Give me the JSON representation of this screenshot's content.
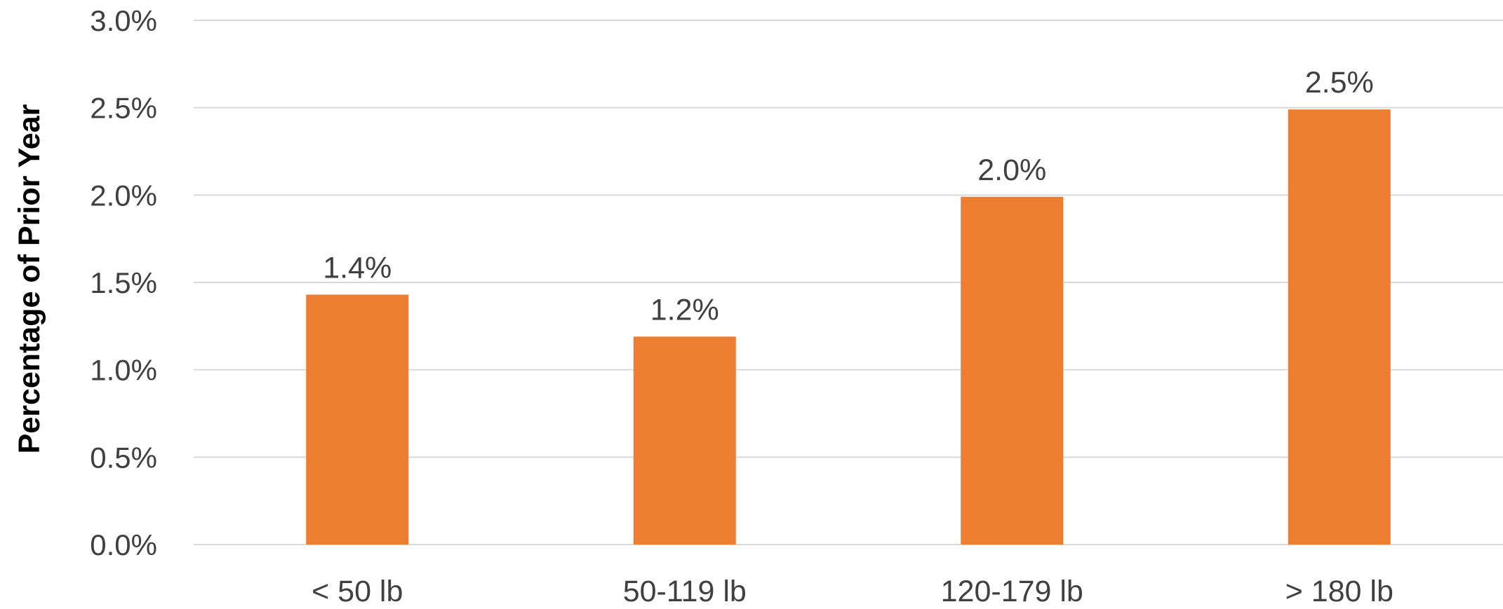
{
  "chart_data": {
    "type": "bar",
    "title": "",
    "xlabel": "",
    "ylabel": "Percentage of Prior Year",
    "categories": [
      "< 50 lb",
      "50-119 lb",
      "120-179 lb",
      "> 180 lb"
    ],
    "values": [
      1.43,
      1.19,
      1.99,
      2.49
    ],
    "value_labels": [
      "1.4%",
      "1.2%",
      "2.0%",
      "2.5%"
    ],
    "ylim": [
      0,
      3.0
    ],
    "yticks": [
      0,
      0.5,
      1.0,
      1.5,
      2.0,
      2.5,
      3.0
    ],
    "ytick_labels": [
      "0.0%",
      "0.5%",
      "1.0%",
      "1.5%",
      "2.0%",
      "2.5%",
      "3.0%"
    ],
    "grid": true,
    "legend": "none",
    "colors": {
      "bar": "#ED7D31",
      "grid": "#D9D9D9",
      "text": "#404040",
      "axis_title": "#000000"
    }
  }
}
